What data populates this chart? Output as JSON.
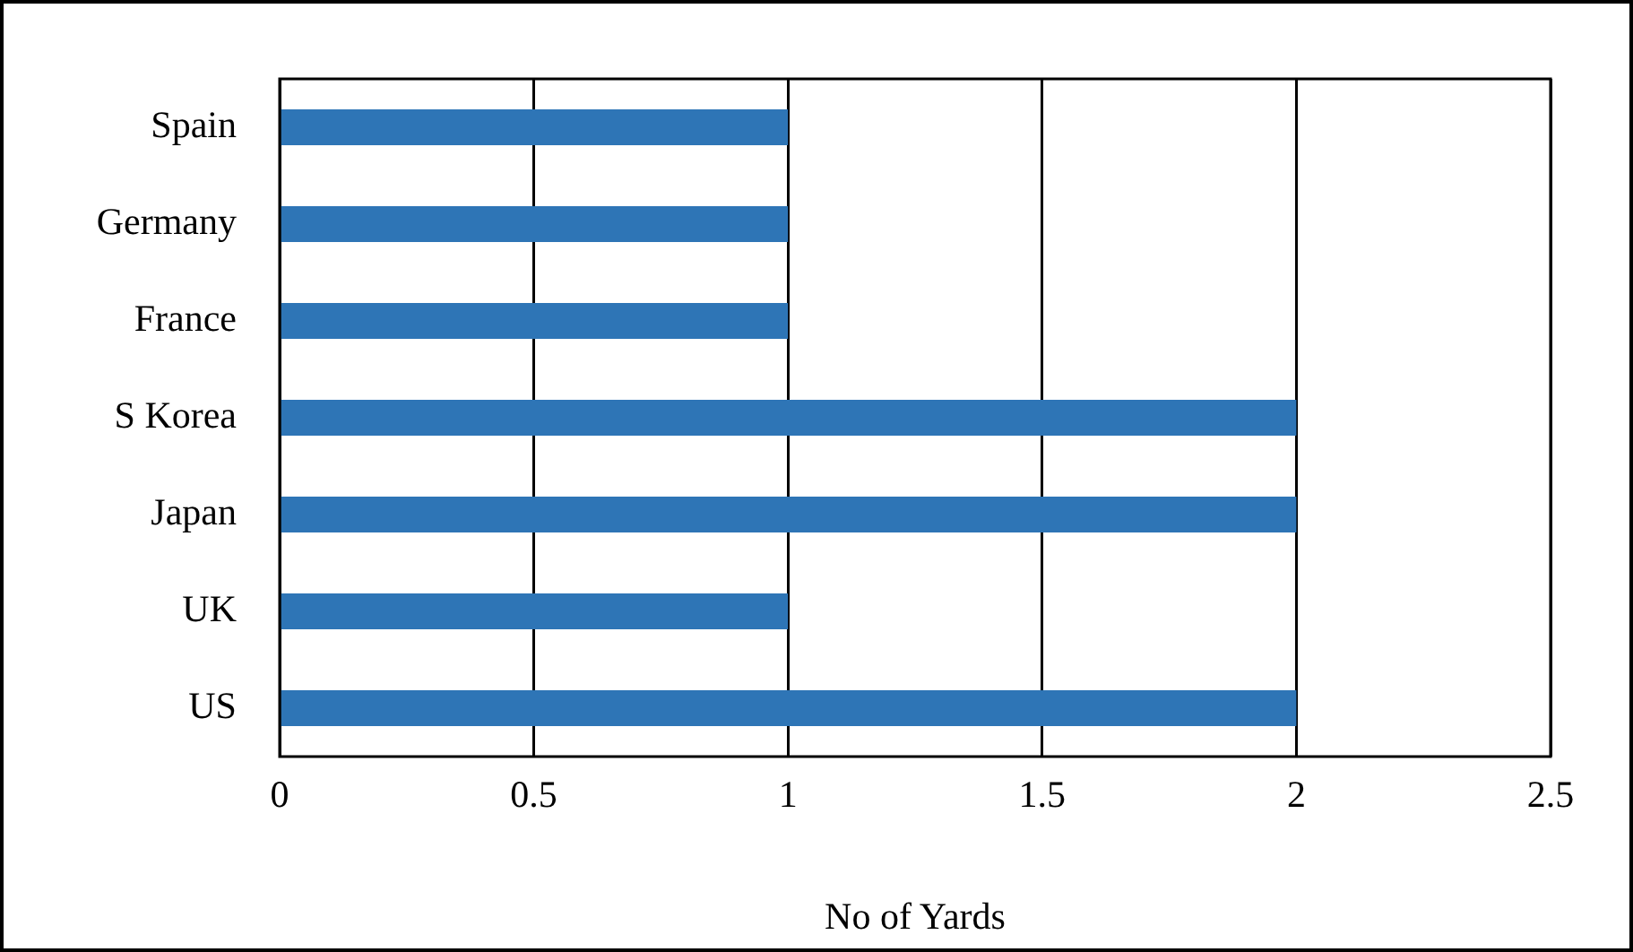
{
  "chart_data": {
    "type": "bar",
    "orientation": "horizontal",
    "categories": [
      "Spain",
      "Germany",
      "France",
      "S Korea",
      "Japan",
      "UK",
      "US"
    ],
    "values": [
      1,
      1,
      1,
      2,
      2,
      1,
      2
    ],
    "color": "#2e75b6",
    "xlabel": "No of Yards",
    "xlim": [
      0,
      2.5
    ],
    "xticks": [
      0,
      0.5,
      1,
      1.5,
      2,
      2.5
    ],
    "grid": "x",
    "legend": false
  }
}
